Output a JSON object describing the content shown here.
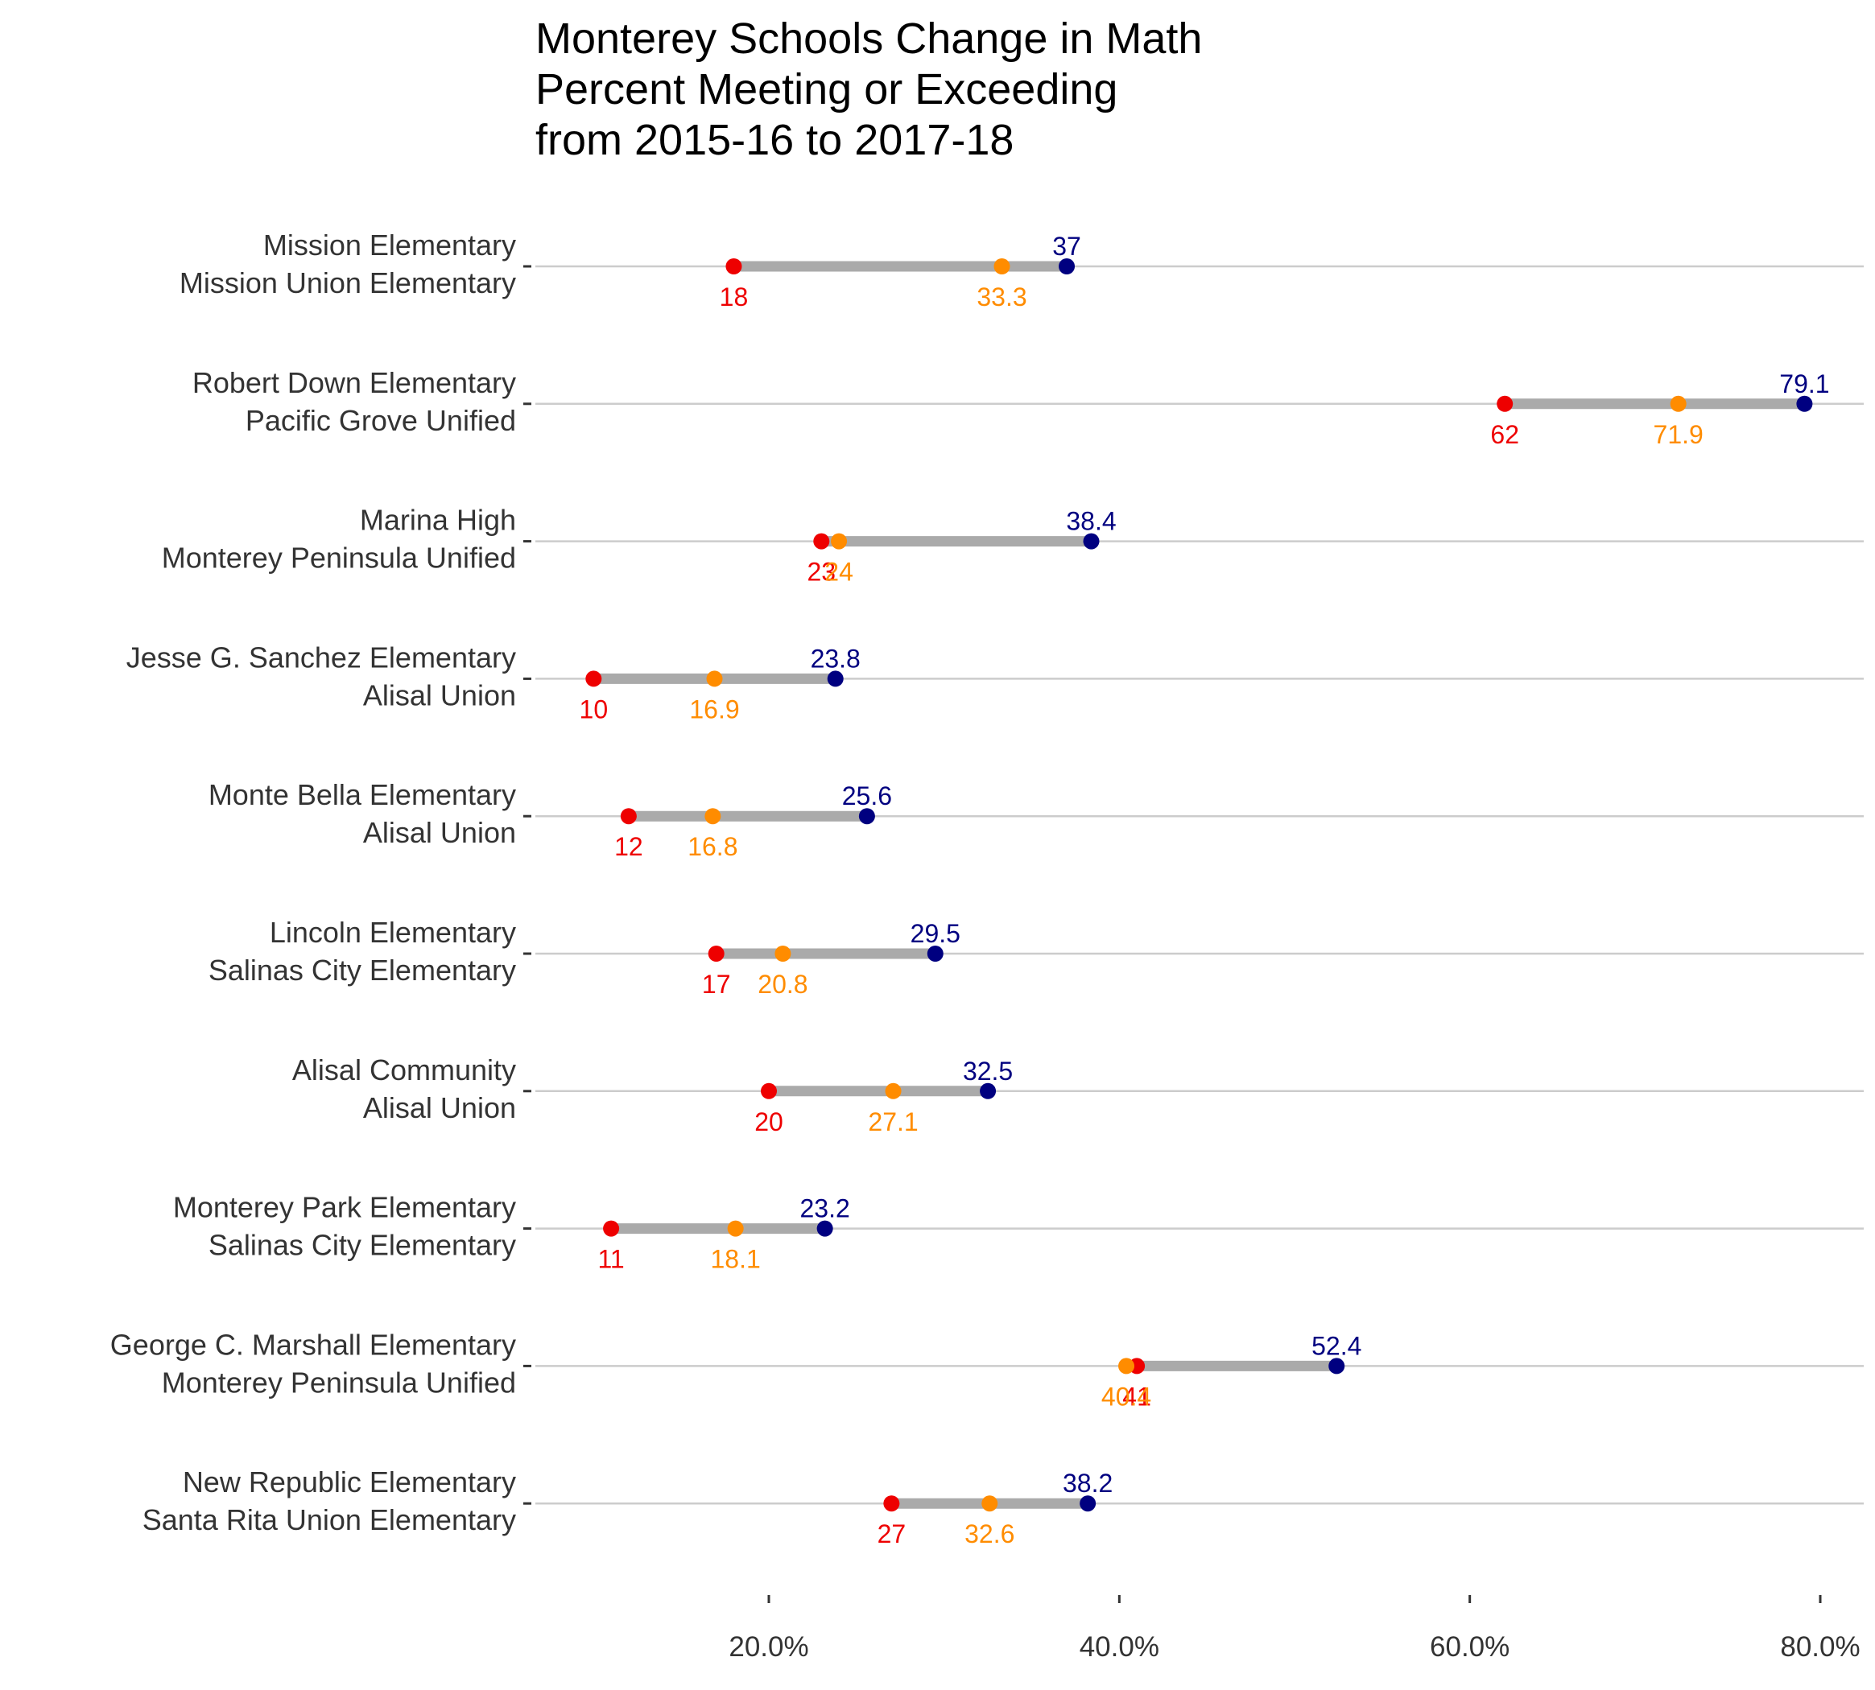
{
  "chart_data": {
    "type": "dumbbell",
    "title": [
      "Monterey Schools Change in Math",
      "Percent Meeting or Exceeding",
      "from 2015-16 to 2017-18"
    ],
    "xlabel": "",
    "ylabel": "",
    "xlim": [
      6,
      82
    ],
    "x_ticks": [
      20,
      40,
      60,
      80
    ],
    "x_tick_labels": [
      "20.0%",
      "40.0%",
      "60.0%",
      "80.0%"
    ],
    "grid": "horizontal",
    "colors": {
      "2015-16": "#EE0000",
      "2016-17": "#FF8C00",
      "2017-18": "#000080",
      "segment": "#AAAAAA",
      "gridline": "#CCCCCC"
    },
    "rows": [
      {
        "school": "Mission Elementary",
        "district": "Mission Union Elementary",
        "v2015": 18,
        "v2016": 33.3,
        "v2017": 37,
        "l2015": "18",
        "l2016": "33.3",
        "l2017": "37"
      },
      {
        "school": "Robert Down Elementary",
        "district": "Pacific Grove Unified",
        "v2015": 62,
        "v2016": 71.9,
        "v2017": 79.1,
        "l2015": "62",
        "l2016": "71.9",
        "l2017": "79.1"
      },
      {
        "school": "Marina High",
        "district": "Monterey Peninsula Unified",
        "v2015": 23,
        "v2016": 24,
        "v2017": 38.4,
        "l2015": "23",
        "l2016": "24",
        "l2017": "38.4"
      },
      {
        "school": "Jesse G. Sanchez Elementary",
        "district": "Alisal Union",
        "v2015": 10,
        "v2016": 16.9,
        "v2017": 23.8,
        "l2015": "10",
        "l2016": "16.9",
        "l2017": "23.8"
      },
      {
        "school": "Monte Bella Elementary",
        "district": "Alisal Union",
        "v2015": 12,
        "v2016": 16.8,
        "v2017": 25.6,
        "l2015": "12",
        "l2016": "16.8",
        "l2017": "25.6"
      },
      {
        "school": "Lincoln Elementary",
        "district": "Salinas City Elementary",
        "v2015": 17,
        "v2016": 20.8,
        "v2017": 29.5,
        "l2015": "17",
        "l2016": "20.8",
        "l2017": "29.5"
      },
      {
        "school": "Alisal Community",
        "district": "Alisal Union",
        "v2015": 20,
        "v2016": 27.1,
        "v2017": 32.5,
        "l2015": "20",
        "l2016": "27.1",
        "l2017": "32.5"
      },
      {
        "school": "Monterey Park Elementary",
        "district": "Salinas City Elementary",
        "v2015": 11,
        "v2016": 18.1,
        "v2017": 23.2,
        "l2015": "11",
        "l2016": "18.1",
        "l2017": "23.2"
      },
      {
        "school": "George C. Marshall Elementary",
        "district": "Monterey Peninsula Unified",
        "v2015": 41,
        "v2016": 40.4,
        "v2017": 52.4,
        "l2015": "41",
        "l2016": "40.4",
        "l2017": "52.4"
      },
      {
        "school": "New Republic Elementary",
        "district": "Santa Rita Union Elementary",
        "v2015": 27,
        "v2016": 32.6,
        "v2017": 38.2,
        "l2015": "27",
        "l2016": "32.6",
        "l2017": "38.2"
      }
    ]
  }
}
